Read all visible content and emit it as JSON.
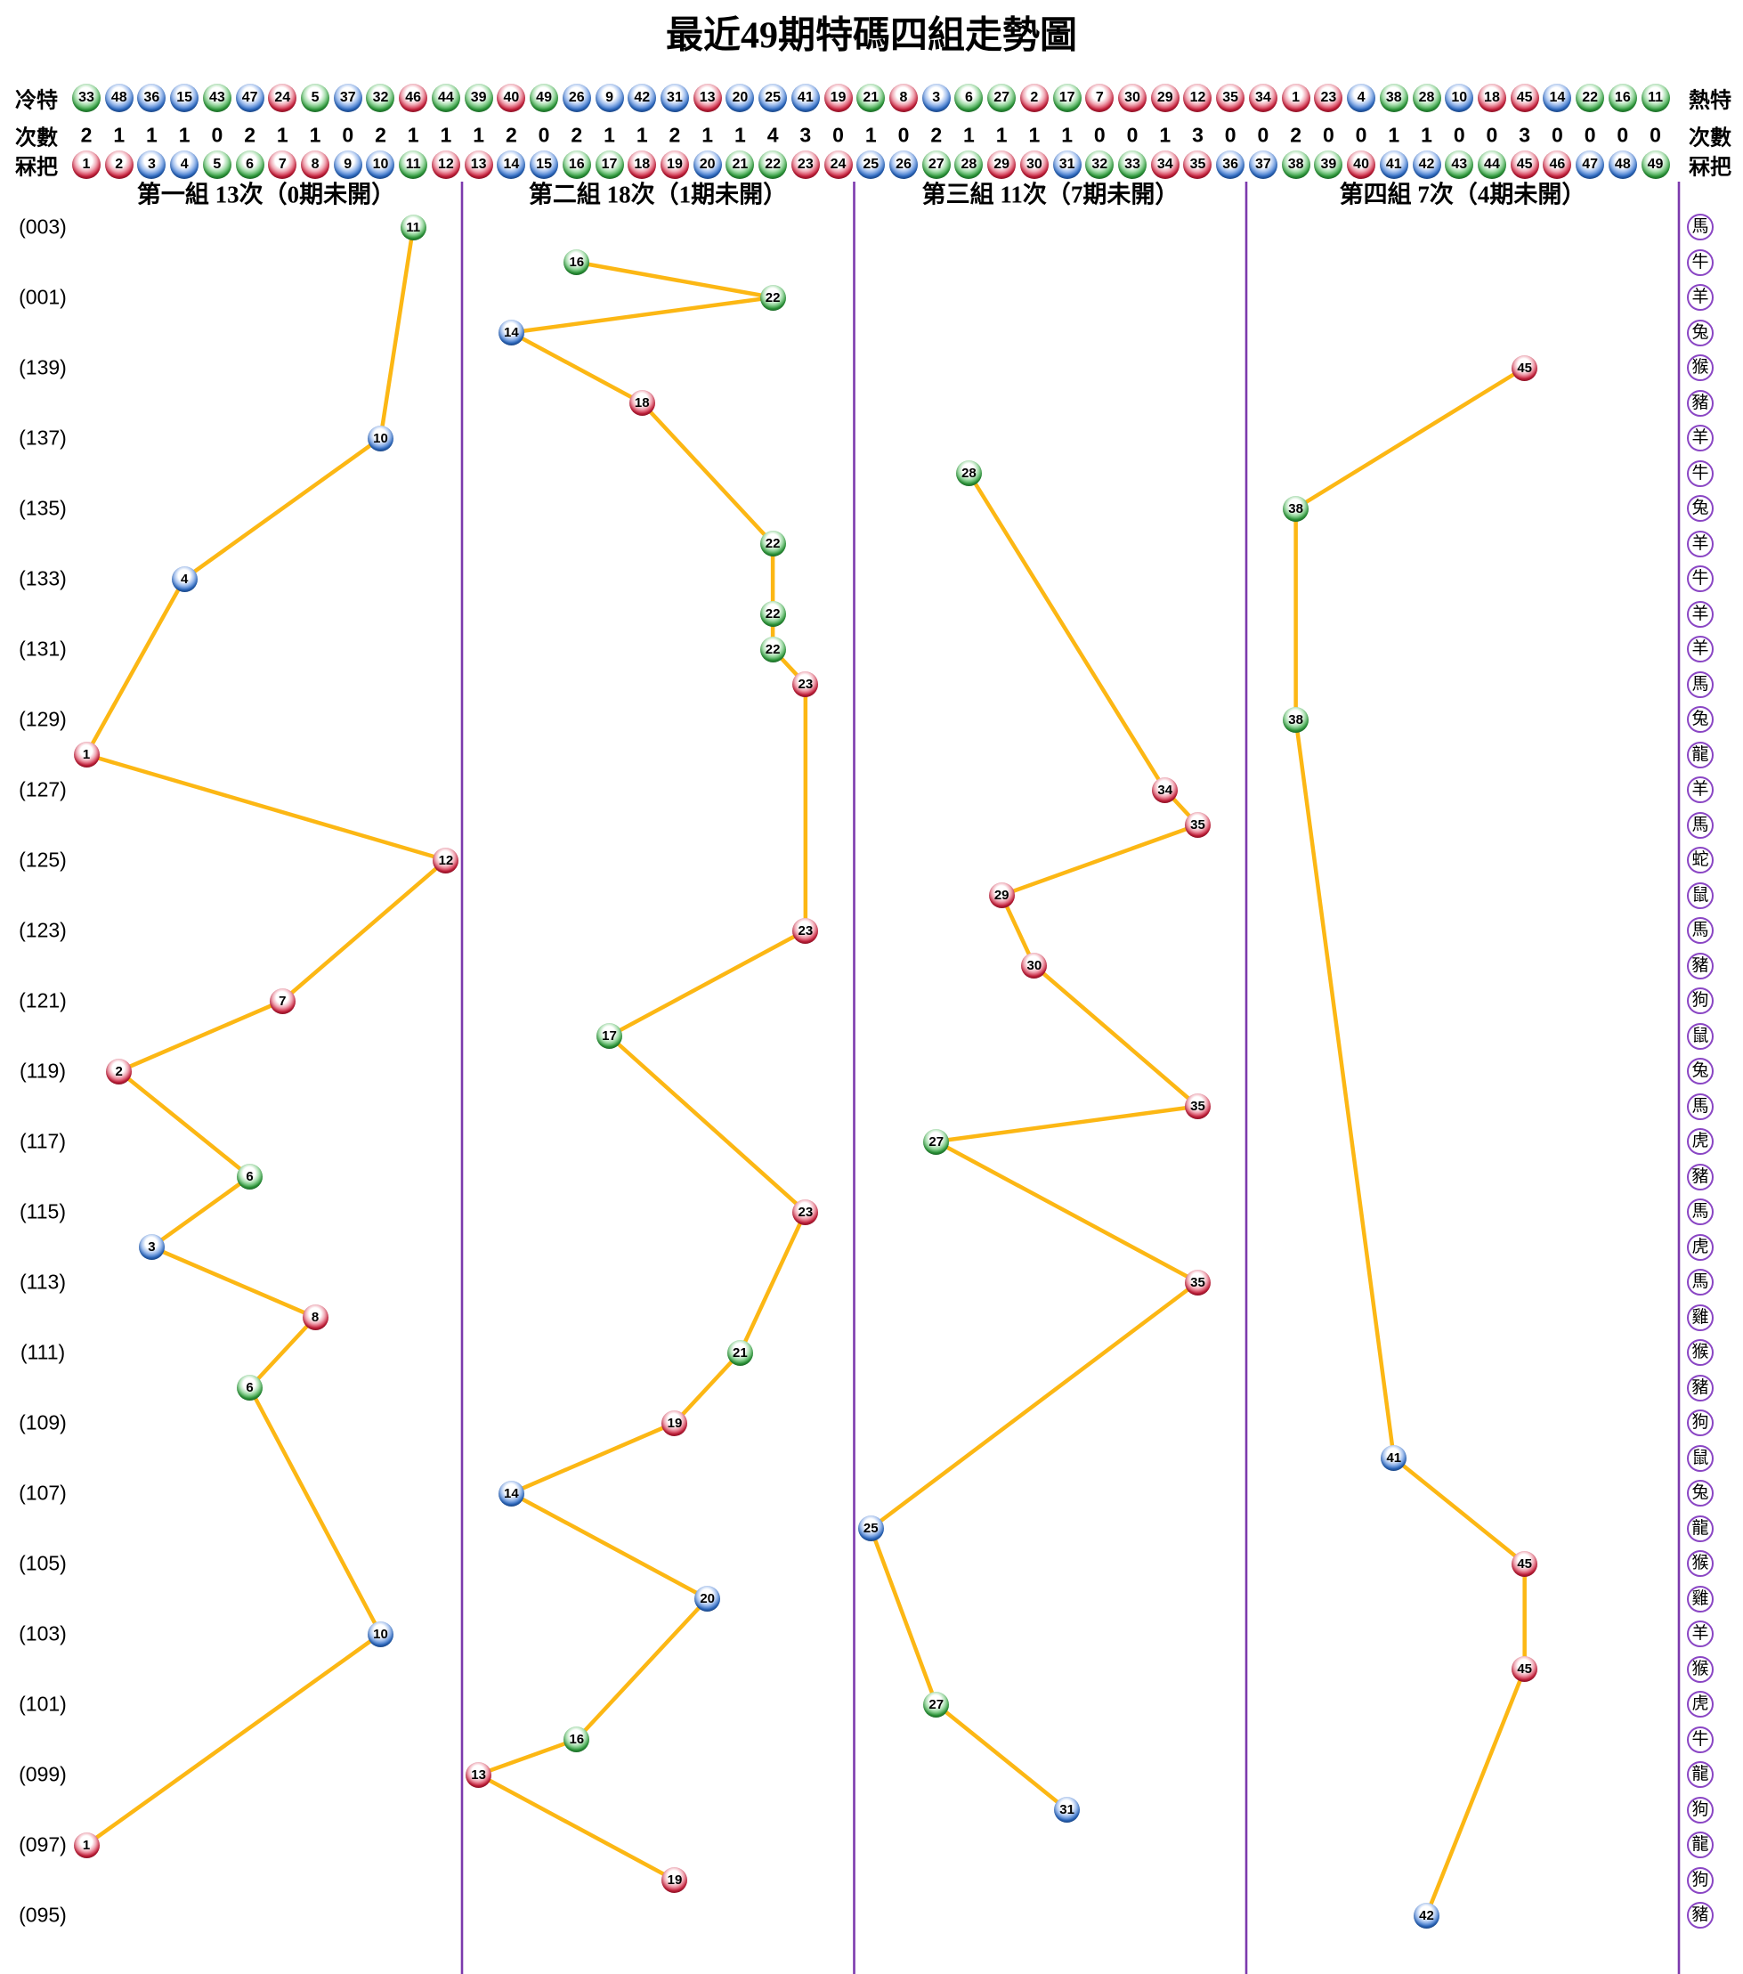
{
  "title": "最近49期特碼四組走勢圖",
  "colors": {
    "trend_line": "#fcb714",
    "separator": "#7c3aad",
    "zodiac_ring": "#8a46c4"
  },
  "ball_colors": {
    "red": {
      "hex": "#cf1f3c",
      "numbers": [
        1,
        2,
        7,
        8,
        12,
        13,
        18,
        19,
        23,
        24,
        29,
        30,
        34,
        35,
        40,
        45,
        46
      ]
    },
    "blue": {
      "hex": "#2c6cc8",
      "numbers": [
        3,
        4,
        9,
        10,
        14,
        15,
        20,
        25,
        26,
        31,
        36,
        37,
        41,
        42,
        47,
        48
      ]
    },
    "green": {
      "hex": "#2e9f3c",
      "numbers": [
        5,
        6,
        11,
        16,
        17,
        21,
        22,
        27,
        28,
        32,
        33,
        38,
        39,
        43,
        44,
        49
      ]
    }
  },
  "header": {
    "left_labels": {
      "cold": "冷特",
      "counts": "次數",
      "numbers": "冧把"
    },
    "right_labels": {
      "hot": "熱特",
      "counts": "次數",
      "numbers": "冧把"
    },
    "cold_numbers": [
      33,
      48,
      36,
      15,
      43,
      47,
      24,
      5,
      37,
      32,
      46,
      44,
      39,
      40,
      49,
      26,
      9,
      42,
      31,
      13,
      20,
      25,
      41,
      19,
      21,
      8,
      3,
      6,
      27,
      2,
      17,
      7,
      30,
      29,
      12,
      35,
      34,
      1,
      23,
      4,
      38,
      28,
      10,
      18,
      45,
      14,
      22,
      16,
      11
    ],
    "counts": [
      2,
      1,
      1,
      1,
      0,
      2,
      1,
      1,
      0,
      2,
      1,
      1,
      1,
      2,
      0,
      2,
      1,
      1,
      2,
      1,
      1,
      4,
      3,
      0,
      1,
      0,
      2,
      1,
      1,
      1,
      1,
      0,
      0,
      1,
      3,
      0,
      0,
      2,
      0,
      0,
      1,
      1,
      0,
      0,
      3,
      0,
      0,
      0,
      0
    ],
    "ball_numbers": [
      1,
      2,
      3,
      4,
      5,
      6,
      7,
      8,
      9,
      10,
      11,
      12,
      13,
      14,
      15,
      16,
      17,
      18,
      19,
      20,
      21,
      22,
      23,
      24,
      25,
      26,
      27,
      28,
      29,
      30,
      31,
      32,
      33,
      34,
      35,
      36,
      37,
      38,
      39,
      40,
      41,
      42,
      43,
      44,
      45,
      46,
      47,
      48,
      49
    ]
  },
  "groups": [
    {
      "title": "第一組 13次（0期未開）",
      "col_start": 1,
      "col_end": 12
    },
    {
      "title": "第二組 18次（1期未開）",
      "col_start": 13,
      "col_end": 24
    },
    {
      "title": "第三組 11次（7期未開）",
      "col_start": 25,
      "col_end": 36
    },
    {
      "title": "第四組 7次（4期未開）",
      "col_start": 37,
      "col_end": 49
    }
  ],
  "chart_data": {
    "type": "line",
    "x_axis": "special number 1-49 in four groups",
    "y_axis": "period, newest at top",
    "rows": [
      {
        "period": "(003)",
        "number": 11,
        "zodiac": "馬"
      },
      {
        "period": "",
        "number": 16,
        "zodiac": "牛"
      },
      {
        "period": "(001)",
        "number": 22,
        "zodiac": "羊"
      },
      {
        "period": "",
        "number": 14,
        "zodiac": "兔"
      },
      {
        "period": "(139)",
        "number": 45,
        "zodiac": "猴"
      },
      {
        "period": "",
        "number": 18,
        "zodiac": "豬"
      },
      {
        "period": "(137)",
        "number": 10,
        "zodiac": "羊"
      },
      {
        "period": "",
        "number": 28,
        "zodiac": "牛"
      },
      {
        "period": "(135)",
        "number": 38,
        "zodiac": "兔"
      },
      {
        "period": "",
        "number": 22,
        "zodiac": "羊"
      },
      {
        "period": "(133)",
        "number": 4,
        "zodiac": "牛"
      },
      {
        "period": "",
        "number": 22,
        "zodiac": "羊"
      },
      {
        "period": "(131)",
        "number": 22,
        "zodiac": "羊"
      },
      {
        "period": "",
        "number": 23,
        "zodiac": "馬"
      },
      {
        "period": "(129)",
        "number": 38,
        "zodiac": "兔"
      },
      {
        "period": "",
        "number": 1,
        "zodiac": "龍"
      },
      {
        "period": "(127)",
        "number": 34,
        "zodiac": "羊"
      },
      {
        "period": "",
        "number": 35,
        "zodiac": "馬"
      },
      {
        "period": "(125)",
        "number": 12,
        "zodiac": "蛇"
      },
      {
        "period": "",
        "number": 29,
        "zodiac": "鼠"
      },
      {
        "period": "(123)",
        "number": 23,
        "zodiac": "馬"
      },
      {
        "period": "",
        "number": 30,
        "zodiac": "豬"
      },
      {
        "period": "(121)",
        "number": 7,
        "zodiac": "狗"
      },
      {
        "period": "",
        "number": 17,
        "zodiac": "鼠"
      },
      {
        "period": "(119)",
        "number": 2,
        "zodiac": "兔"
      },
      {
        "period": "",
        "number": 35,
        "zodiac": "馬"
      },
      {
        "period": "(117)",
        "number": 27,
        "zodiac": "虎"
      },
      {
        "period": "",
        "number": 6,
        "zodiac": "豬"
      },
      {
        "period": "(115)",
        "number": 23,
        "zodiac": "馬"
      },
      {
        "period": "",
        "number": 3,
        "zodiac": "虎"
      },
      {
        "period": "(113)",
        "number": 35,
        "zodiac": "馬"
      },
      {
        "period": "",
        "number": 8,
        "zodiac": "雞"
      },
      {
        "period": "(111)",
        "number": 21,
        "zodiac": "猴"
      },
      {
        "period": "",
        "number": 6,
        "zodiac": "豬"
      },
      {
        "period": "(109)",
        "number": 19,
        "zodiac": "狗"
      },
      {
        "period": "",
        "number": 41,
        "zodiac": "鼠"
      },
      {
        "period": "(107)",
        "number": 14,
        "zodiac": "兔"
      },
      {
        "period": "",
        "number": 25,
        "zodiac": "龍"
      },
      {
        "period": "(105)",
        "number": 45,
        "zodiac": "猴"
      },
      {
        "period": "",
        "number": 20,
        "zodiac": "雞"
      },
      {
        "period": "(103)",
        "number": 10,
        "zodiac": "羊"
      },
      {
        "period": "",
        "number": 45,
        "zodiac": "猴"
      },
      {
        "period": "(101)",
        "number": 27,
        "zodiac": "虎"
      },
      {
        "period": "",
        "number": 16,
        "zodiac": "牛"
      },
      {
        "period": "(099)",
        "number": 13,
        "zodiac": "龍"
      },
      {
        "period": "",
        "number": 31,
        "zodiac": "狗"
      },
      {
        "period": "(097)",
        "number": 1,
        "zodiac": "龍"
      },
      {
        "period": "",
        "number": 19,
        "zodiac": "狗"
      },
      {
        "period": "(095)",
        "number": 42,
        "zodiac": "豬"
      }
    ]
  }
}
